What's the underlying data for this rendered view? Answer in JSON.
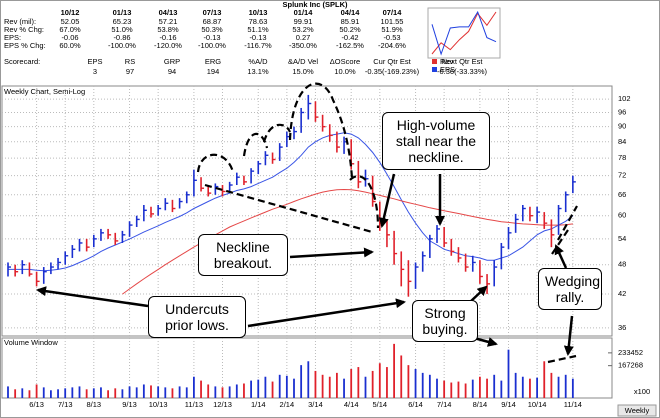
{
  "header": {
    "title": "Splunk Inc (SPLK)",
    "columns": [
      "10/12",
      "01/13",
      "04/13",
      "07/13",
      "10/13",
      "01/14",
      "04/14",
      "07/14"
    ],
    "rows": [
      {
        "label": "Rev (mil):",
        "cells": [
          "52.05",
          "65.23",
          "57.21",
          "68.87",
          "78.63",
          "99.91",
          "85.91",
          "101.55"
        ]
      },
      {
        "label": "Rev % Chg:",
        "cells": [
          "67.0%",
          "51.0%",
          "53.8%",
          "50.3%",
          "51.1%",
          "53.2%",
          "50.2%",
          "51.9%"
        ]
      },
      {
        "label": "EPS:",
        "cells": [
          "-0.06",
          "-0.86",
          "-0.16",
          "-0.13",
          "-0.13",
          "0.27",
          "-0.42",
          "-0.53"
        ]
      },
      {
        "label": "EPS % Chg:",
        "cells": [
          "60.0%",
          "-100.0%",
          "-120.0%",
          "-100.0%",
          "-116.7%",
          "-350.0%",
          "-162.5%",
          "-204.6%"
        ]
      }
    ],
    "scorecard": {
      "label": "Scorecard:",
      "headers": [
        "EPS",
        "RS",
        "GRP",
        "ERG",
        "%A/D",
        "&A/D Vel",
        "ΔOScore",
        "Cur Qtr Est",
        "Next Qtr Est"
      ],
      "values": [
        "3",
        "97",
        "94",
        "194",
        "13.1%",
        "15.0%",
        "10.0%",
        "-0.35(-169.23%)",
        "-0.36(-33.33%)"
      ]
    }
  },
  "annotations": [
    [
      "High-volume",
      "stall near the",
      "neckline."
    ],
    [
      "Neckline",
      "breakout."
    ],
    [
      "Undercuts",
      "prior lows."
    ],
    [
      "Strong",
      "buying."
    ],
    [
      "Wedging",
      "rally."
    ]
  ],
  "period_button": "Weekly",
  "chart_data": [
    {
      "type": "ohlc",
      "title": "Weekly Chart, Semi-Log",
      "log_scale": true,
      "grid": true,
      "up_color": "#1a2fd0",
      "down_color": "#e0202a",
      "categories": [
        null,
        null,
        null,
        null,
        "6/13",
        null,
        null,
        null,
        "7/13",
        null,
        null,
        null,
        "8/13",
        null,
        null,
        null,
        null,
        "9/13",
        null,
        null,
        null,
        "10/13",
        null,
        null,
        null,
        null,
        "11/13",
        null,
        null,
        null,
        "12/13",
        null,
        null,
        null,
        null,
        "1/14",
        null,
        null,
        null,
        "2/14",
        null,
        null,
        null,
        "3/14",
        null,
        null,
        null,
        null,
        "4/14",
        null,
        null,
        null,
        "5/14",
        null,
        null,
        null,
        null,
        "6/14",
        null,
        null,
        null,
        "7/14",
        null,
        null,
        null,
        null,
        "8/14",
        null,
        null,
        null,
        "9/14",
        null,
        null,
        null,
        "10/14",
        null,
        null,
        null,
        null,
        "11/14"
      ],
      "high": [
        48.5,
        48,
        49,
        48.5,
        46.5,
        47.5,
        48.5,
        49.5,
        51,
        52.5,
        54,
        54,
        55,
        56.5,
        56.5,
        55.5,
        56,
        58.5,
        60,
        63,
        62.5,
        63,
        65,
        64.5,
        65,
        67,
        74,
        71.5,
        69,
        69.5,
        69,
        70,
        73,
        72,
        74.5,
        77,
        80.5,
        80,
        83.5,
        88,
        90,
        98,
        104,
        101,
        95,
        91,
        88,
        86,
        85,
        77,
        74,
        72,
        64,
        59,
        56,
        51,
        49,
        48.5,
        51,
        55,
        57.5,
        57,
        54,
        52,
        50.5,
        50,
        49,
        46,
        49,
        53,
        57,
        60.5,
        63,
        62.5,
        62.5,
        61,
        59,
        63,
        67,
        72
      ],
      "low": [
        45.5,
        45.5,
        46,
        45.5,
        43.5,
        44,
        46,
        47,
        48,
        49.5,
        51,
        51,
        52,
        53.5,
        54,
        52.5,
        53,
        54.5,
        57,
        58.5,
        59.5,
        60,
        61.5,
        61,
        62,
        63.5,
        65.5,
        67,
        65.5,
        66,
        65.5,
        66.5,
        69,
        69,
        69.5,
        72.5,
        75.5,
        76,
        77,
        82,
        85,
        87.5,
        93,
        92,
        88,
        84,
        80,
        79.5,
        74,
        68,
        68.5,
        62.5,
        56,
        52,
        48,
        43.5,
        41.5,
        43,
        46.5,
        49.5,
        53,
        52,
        50,
        48.5,
        46.5,
        46.5,
        44,
        42,
        43.5,
        47,
        51.5,
        55.5,
        58.5,
        58.5,
        58,
        56.5,
        52,
        55,
        61,
        66.5
      ],
      "close": [
        47.5,
        46.5,
        48,
        46,
        44.5,
        46.5,
        47.5,
        48.5,
        50,
        51.5,
        53,
        52,
        54,
        55.5,
        55,
        53.5,
        55,
        57.5,
        59,
        61.5,
        60.5,
        62,
        63.5,
        62,
        64,
        66,
        70.5,
        68,
        66.5,
        68.5,
        67,
        69,
        71.5,
        70,
        73.5,
        76,
        79,
        77.5,
        82,
        86,
        88,
        96,
        100,
        94,
        90,
        86.5,
        82,
        84,
        76,
        70,
        71,
        64,
        58,
        55,
        50.5,
        47,
        44.5,
        47.5,
        50,
        54,
        56.5,
        53,
        51,
        49.5,
        47.5,
        48.5,
        45.5,
        44,
        47.5,
        52,
        55.5,
        59,
        62,
        60,
        61,
        58,
        55,
        62,
        66,
        70
      ],
      "moving_averages": [
        {
          "color": "#3a55e6",
          "values": [
            47,
            47,
            47,
            47,
            46.8,
            46.7,
            46.8,
            47,
            47.3,
            47.8,
            48.5,
            49.2,
            50,
            51,
            51.8,
            52.5,
            53.2,
            54,
            54.8,
            55.7,
            56.5,
            57.3,
            58.2,
            59,
            59.8,
            60.8,
            62,
            63,
            64,
            65,
            65.8,
            66.5,
            67.3,
            67.8,
            68.5,
            69.5,
            70.5,
            71.5,
            73,
            74.5,
            76.5,
            79,
            82,
            84,
            85.5,
            86.5,
            87,
            87.5,
            87,
            85.5,
            83,
            80,
            76.5,
            72.5,
            68.5,
            64.5,
            61,
            58,
            55.5,
            53.5,
            52.5,
            51.5,
            51,
            50.5,
            50,
            49.8,
            49.5,
            49,
            49,
            49.5,
            50,
            51,
            52,
            53.5,
            55,
            56,
            56.5,
            57.5,
            58.5,
            60
          ]
        },
        {
          "color": "#e54848",
          "values": [
            null,
            null,
            null,
            null,
            null,
            null,
            null,
            null,
            null,
            null,
            null,
            null,
            null,
            null,
            null,
            null,
            42,
            43,
            44,
            45,
            46,
            47,
            48,
            49,
            50,
            51,
            52,
            53,
            54,
            55,
            56,
            57,
            57.8,
            58.6,
            59.4,
            60.2,
            61,
            61.8,
            62.5,
            63.2,
            64,
            64.8,
            65.5,
            66.2,
            66.8,
            67.2,
            67.5,
            67.6,
            67.5,
            67.2,
            66.8,
            66.3,
            65.8,
            65.3,
            64.8,
            64.2,
            63.7,
            63.2,
            62.7,
            62.2,
            61.8,
            61.4,
            61,
            60.6,
            60.2,
            59.8,
            59.4,
            59,
            58.7,
            58.4,
            58.2,
            58,
            57.8,
            57.7,
            57.6,
            57.5,
            57.5,
            57.5,
            57.6,
            57.8
          ]
        }
      ],
      "ylim": [
        34.7,
        108.3
      ],
      "yticks": [
        36,
        42,
        48,
        54,
        60,
        66,
        72,
        78,
        84,
        90,
        96,
        102
      ]
    },
    {
      "type": "bar",
      "title": "Volume Window",
      "unit_label": "x100",
      "values": [
        60000,
        45000,
        50000,
        40000,
        70000,
        55000,
        40000,
        45000,
        50000,
        55000,
        60000,
        45000,
        50000,
        55000,
        40000,
        50000,
        45000,
        60000,
        55000,
        70000,
        65000,
        60000,
        55000,
        50000,
        60000,
        55000,
        110000,
        90000,
        70000,
        60000,
        55000,
        60000,
        70000,
        75000,
        90000,
        95000,
        110000,
        85000,
        120000,
        115000,
        100000,
        170000,
        190000,
        140000,
        120000,
        110000,
        130000,
        100000,
        150000,
        160000,
        110000,
        140000,
        180000,
        160000,
        280000,
        220000,
        170000,
        150000,
        130000,
        120000,
        100000,
        90000,
        80000,
        85000,
        75000,
        95000,
        110000,
        100000,
        120000,
        90000,
        250000,
        130000,
        110000,
        100000,
        105000,
        190000,
        130000,
        110000,
        120000,
        100000
      ],
      "ylim": [
        0,
        300000
      ],
      "yticks": [
        167268,
        233452
      ]
    },
    {
      "type": "line",
      "series": [
        {
          "name": "Rev",
          "color": "#e03030",
          "values": [
            52.05,
            65.23,
            57.21,
            68.87,
            78.63,
            99.91,
            85.91,
            101.55
          ]
        },
        {
          "name": "EPS",
          "color": "#2040e0",
          "values": [
            -0.06,
            -0.86,
            -0.16,
            -0.13,
            -0.13,
            0.27,
            -0.42,
            -0.53
          ]
        }
      ]
    }
  ]
}
